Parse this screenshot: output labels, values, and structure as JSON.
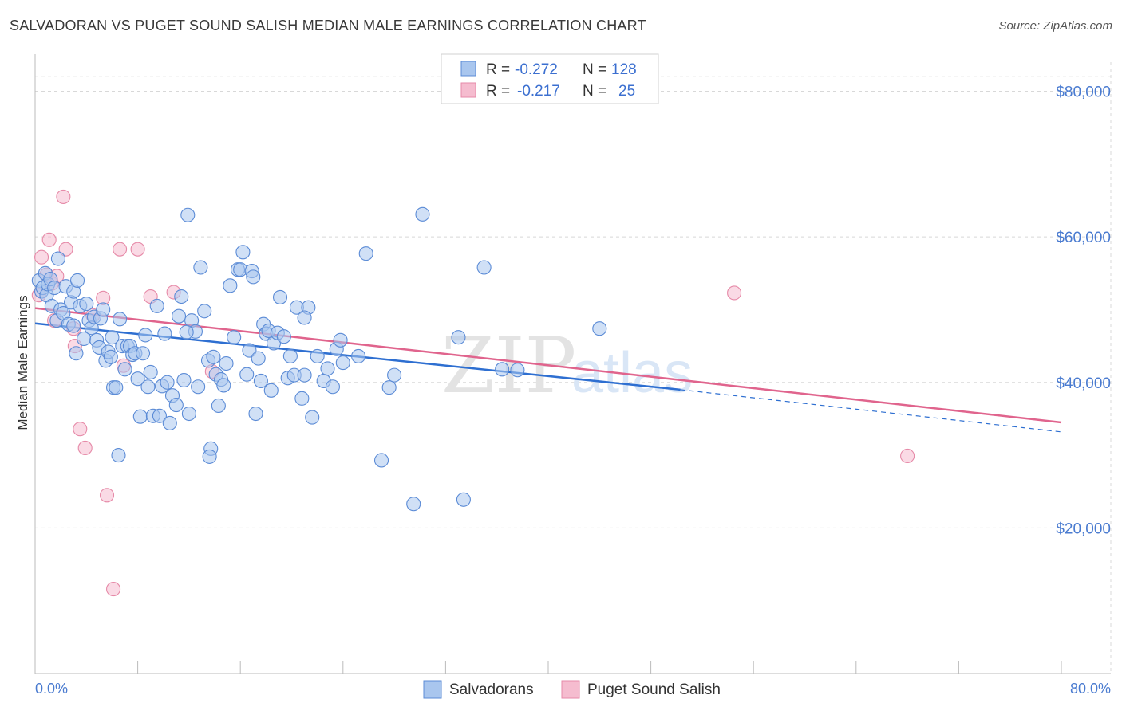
{
  "title": "SALVADORAN VS PUGET SOUND SALISH MEDIAN MALE EARNINGS CORRELATION CHART",
  "source": "Source: ZipAtlas.com",
  "watermark": {
    "zip": "ZIP",
    "atlas": "atlas"
  },
  "colors": {
    "blue_fill": "#a9c6ee",
    "blue_stroke": "#5b8bd6",
    "blue_line": "#2e6fd1",
    "pink_fill": "#f5bccf",
    "pink_stroke": "#e68aa8",
    "pink_line": "#e0648d",
    "grid": "#d8d8d8",
    "axis_text": "#4a7bd0"
  },
  "legend": {
    "r_label": "R =",
    "n_label": "N =",
    "rows": [
      {
        "r": "-0.272",
        "n": "128",
        "color": "blue"
      },
      {
        "r": "-0.217",
        "n": "25",
        "color": "pink"
      }
    ]
  },
  "bottom_legend": [
    "Salvadorans",
    "Puget Sound Salish"
  ],
  "chart_data": {
    "type": "scatter",
    "xlabel": "",
    "ylabel": "Median Male Earnings",
    "xlim": [
      0,
      80
    ],
    "ylim": [
      0,
      84000
    ],
    "x_tick_labels": [
      "0.0%",
      "80.0%"
    ],
    "y_ticks": [
      20000,
      40000,
      60000,
      80000
    ],
    "y_tick_labels": [
      "$20,000",
      "$40,000",
      "$60,000",
      "$80,000"
    ],
    "grid": true,
    "series": [
      {
        "name": "Salvadorans",
        "color": "blue",
        "trend": {
          "x0": 0,
          "y0": 48100,
          "x1": 50.3,
          "y1": 39000,
          "dash_to_x": 80,
          "dash_to_y": 33200
        },
        "points": [
          [
            0.3,
            54000
          ],
          [
            0.5,
            52500
          ],
          [
            0.6,
            53000
          ],
          [
            0.8,
            55000
          ],
          [
            0.9,
            52000
          ],
          [
            1.0,
            53500
          ],
          [
            1.2,
            54200
          ],
          [
            1.3,
            50500
          ],
          [
            1.5,
            53000
          ],
          [
            1.7,
            48500
          ],
          [
            1.8,
            57000
          ],
          [
            2.0,
            50000
          ],
          [
            2.2,
            49500
          ],
          [
            2.4,
            53200
          ],
          [
            2.6,
            48000
          ],
          [
            2.8,
            51000
          ],
          [
            3.0,
            52500
          ],
          [
            3.2,
            44000
          ],
          [
            3.3,
            54000
          ],
          [
            3.5,
            50500
          ],
          [
            3.8,
            46000
          ],
          [
            4.0,
            50800
          ],
          [
            4.2,
            48500
          ],
          [
            4.4,
            47500
          ],
          [
            4.6,
            49000
          ],
          [
            4.8,
            45800
          ],
          [
            5.0,
            44800
          ],
          [
            5.1,
            48800
          ],
          [
            5.3,
            50000
          ],
          [
            5.5,
            43000
          ],
          [
            5.7,
            44200
          ],
          [
            5.9,
            43500
          ],
          [
            6.1,
            39300
          ],
          [
            6.3,
            39300
          ],
          [
            6.6,
            48700
          ],
          [
            6.8,
            45000
          ],
          [
            7.0,
            41800
          ],
          [
            7.2,
            45000
          ],
          [
            7.4,
            45000
          ],
          [
            7.6,
            43800
          ],
          [
            7.8,
            44000
          ],
          [
            8.0,
            40500
          ],
          [
            8.2,
            35300
          ],
          [
            8.4,
            44000
          ],
          [
            8.6,
            46500
          ],
          [
            8.8,
            39400
          ],
          [
            9.0,
            41400
          ],
          [
            9.2,
            35400
          ],
          [
            9.5,
            50500
          ],
          [
            9.7,
            35400
          ],
          [
            9.9,
            39500
          ],
          [
            10.1,
            46700
          ],
          [
            10.3,
            40000
          ],
          [
            10.5,
            34400
          ],
          [
            10.7,
            38200
          ],
          [
            11.0,
            36900
          ],
          [
            11.2,
            49100
          ],
          [
            11.4,
            51800
          ],
          [
            11.6,
            40300
          ],
          [
            11.9,
            63000
          ],
          [
            12.0,
            35700
          ],
          [
            12.2,
            48500
          ],
          [
            12.5,
            47000
          ],
          [
            12.7,
            39400
          ],
          [
            12.9,
            55800
          ],
          [
            13.2,
            49800
          ],
          [
            13.5,
            43000
          ],
          [
            13.7,
            30900
          ],
          [
            13.9,
            43500
          ],
          [
            14.1,
            41100
          ],
          [
            14.3,
            36800
          ],
          [
            14.5,
            40400
          ],
          [
            14.7,
            39600
          ],
          [
            14.9,
            42600
          ],
          [
            15.2,
            53300
          ],
          [
            15.5,
            46200
          ],
          [
            15.8,
            55500
          ],
          [
            16.0,
            55500
          ],
          [
            16.2,
            57900
          ],
          [
            16.5,
            41100
          ],
          [
            16.7,
            44400
          ],
          [
            16.9,
            55300
          ],
          [
            17.0,
            54500
          ],
          [
            17.2,
            35700
          ],
          [
            17.4,
            43300
          ],
          [
            17.6,
            40200
          ],
          [
            17.8,
            48000
          ],
          [
            18.0,
            46700
          ],
          [
            18.2,
            47100
          ],
          [
            18.4,
            38900
          ],
          [
            18.6,
            45400
          ],
          [
            18.9,
            46800
          ],
          [
            19.1,
            51700
          ],
          [
            19.4,
            46300
          ],
          [
            19.7,
            40600
          ],
          [
            19.9,
            43600
          ],
          [
            20.2,
            41000
          ],
          [
            20.4,
            50300
          ],
          [
            20.8,
            37800
          ],
          [
            21.0,
            41000
          ],
          [
            21.3,
            50300
          ],
          [
            21.6,
            35200
          ],
          [
            22.0,
            43600
          ],
          [
            22.5,
            40200
          ],
          [
            22.8,
            41900
          ],
          [
            23.2,
            39400
          ],
          [
            23.5,
            44600
          ],
          [
            23.8,
            45800
          ],
          [
            24.0,
            42700
          ],
          [
            25.2,
            43600
          ],
          [
            25.8,
            57700
          ],
          [
            27.0,
            29300
          ],
          [
            27.6,
            39300
          ],
          [
            28.0,
            41000
          ],
          [
            29.5,
            23300
          ],
          [
            30.2,
            63100
          ],
          [
            33.0,
            46200
          ],
          [
            33.4,
            23900
          ],
          [
            35.0,
            55800
          ],
          [
            36.4,
            41800
          ],
          [
            37.6,
            41700
          ],
          [
            44.0,
            47400
          ],
          [
            13.6,
            29800
          ],
          [
            6.5,
            30000
          ],
          [
            3.0,
            47800
          ],
          [
            11.8,
            46900
          ],
          [
            21.0,
            48900
          ],
          [
            6.0,
            46200
          ]
        ]
      },
      {
        "name": "Puget Sound Salish",
        "color": "pink",
        "trend": {
          "x0": 0,
          "y0": 50200,
          "x1": 80,
          "y1": 34500
        },
        "points": [
          [
            0.3,
            52000
          ],
          [
            0.5,
            57200
          ],
          [
            0.9,
            54800
          ],
          [
            1.1,
            59600
          ],
          [
            1.3,
            53600
          ],
          [
            1.5,
            48500
          ],
          [
            1.7,
            54600
          ],
          [
            2.2,
            65500
          ],
          [
            2.4,
            58300
          ],
          [
            3.0,
            47400
          ],
          [
            3.1,
            45000
          ],
          [
            3.5,
            33600
          ],
          [
            3.9,
            31000
          ],
          [
            4.5,
            49200
          ],
          [
            5.3,
            51600
          ],
          [
            5.6,
            24500
          ],
          [
            6.1,
            11600
          ],
          [
            6.6,
            58300
          ],
          [
            6.9,
            42300
          ],
          [
            8.0,
            58300
          ],
          [
            9.0,
            51800
          ],
          [
            10.8,
            52400
          ],
          [
            13.8,
            41500
          ],
          [
            54.5,
            52300
          ],
          [
            68.0,
            29900
          ]
        ]
      }
    ]
  }
}
